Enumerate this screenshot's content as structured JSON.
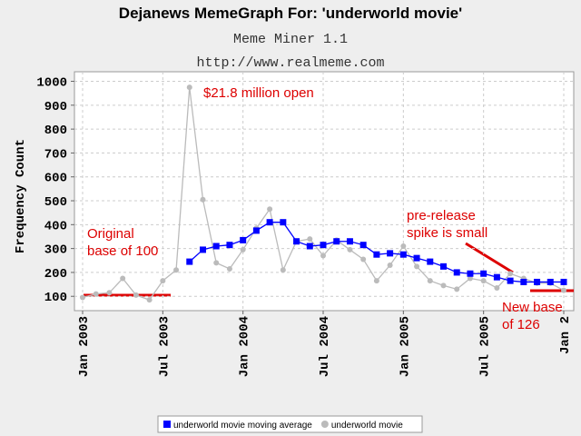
{
  "chart_data": {
    "type": "line",
    "title": "Dejanews MemeGraph For: 'underworld movie'",
    "subtitle": "Meme Miner 1.1",
    "url": "http://www.realmeme.com",
    "y_label": "Frequency Count",
    "x": [
      "2003-01",
      "2003-02",
      "2003-03",
      "2003-04",
      "2003-05",
      "2003-06",
      "2003-07",
      "2003-08",
      "2003-09",
      "2003-10",
      "2003-11",
      "2003-12",
      "2004-01",
      "2004-02",
      "2004-03",
      "2004-04",
      "2004-05",
      "2004-06",
      "2004-07",
      "2004-08",
      "2004-09",
      "2004-10",
      "2004-11",
      "2004-12",
      "2005-01",
      "2005-02",
      "2005-03",
      "2005-04",
      "2005-05",
      "2005-06",
      "2005-07",
      "2005-08",
      "2005-09",
      "2005-10",
      "2005-11",
      "2005-12",
      "2006-01"
    ],
    "series": [
      {
        "name": "underworld movie moving average",
        "color": "#0000ff",
        "marker": "square",
        "values": [
          null,
          null,
          null,
          null,
          null,
          null,
          null,
          null,
          245,
          295,
          310,
          315,
          335,
          375,
          410,
          410,
          330,
          310,
          315,
          330,
          330,
          315,
          275,
          280,
          275,
          260,
          245,
          225,
          200,
          195,
          195,
          180,
          165,
          160,
          160,
          160,
          160
        ]
      },
      {
        "name": "underworld movie",
        "color": "#bbbbbb",
        "marker": "circle",
        "values": [
          95,
          110,
          115,
          175,
          105,
          85,
          165,
          210,
          975,
          505,
          240,
          215,
          295,
          385,
          465,
          210,
          330,
          340,
          270,
          335,
          295,
          255,
          165,
          230,
          310,
          225,
          165,
          145,
          130,
          175,
          165,
          135,
          195,
          175,
          155,
          155,
          125
        ]
      }
    ],
    "xlim": [
      "2003-01",
      "2006-01"
    ],
    "xticks": [
      {
        "value": "2003-01",
        "label": "Jan 2003"
      },
      {
        "value": "2003-07",
        "label": "Jul 2003"
      },
      {
        "value": "2004-01",
        "label": "Jan 2004"
      },
      {
        "value": "2004-07",
        "label": "Jul 2004"
      },
      {
        "value": "2005-01",
        "label": "Jan 2005"
      },
      {
        "value": "2005-07",
        "label": "Jul 2005"
      },
      {
        "value": "2006-01",
        "label": "Jan 2"
      }
    ],
    "ylim": [
      40,
      1040
    ],
    "yticks": [
      100,
      200,
      300,
      400,
      500,
      600,
      700,
      800,
      900,
      1000
    ],
    "grid": true,
    "legend": "bottom",
    "annotations": [
      {
        "lines": [
          "$21.8 million open"
        ]
      },
      {
        "lines": [
          "Original",
          "base of 100"
        ]
      },
      {
        "lines": [
          "pre-release",
          "spike is small"
        ]
      },
      {
        "lines": [
          "New base",
          "of  126"
        ]
      }
    ]
  }
}
